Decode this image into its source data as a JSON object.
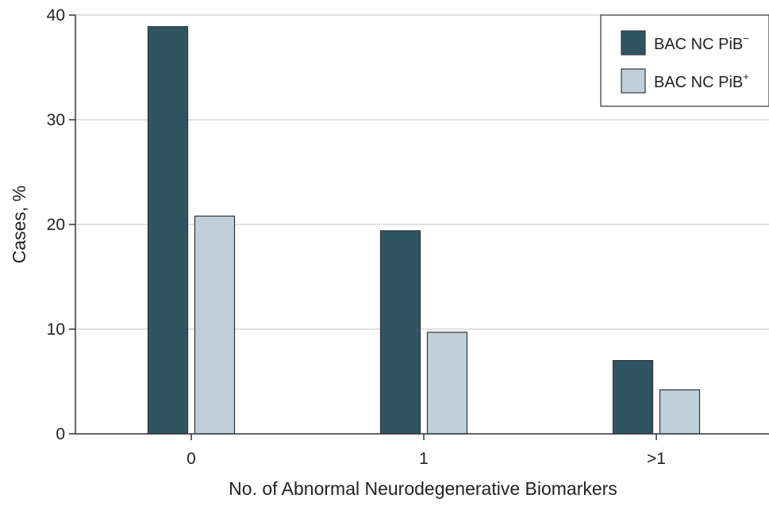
{
  "chart_data": {
    "type": "bar",
    "title": "",
    "xlabel": "No. of Abnormal Neurodegenerative Biomarkers",
    "ylabel": "Cases, %",
    "categories": [
      "0",
      "1",
      ">1"
    ],
    "ylim": [
      0,
      40
    ],
    "yticks": [
      0,
      10,
      20,
      30,
      40
    ],
    "grid": "horizontal",
    "legend_position": "top-right",
    "series": [
      {
        "name": "BAC NC PiB−",
        "label_base": "BAC NC PiB",
        "label_sup": "−",
        "color": "#2f5562",
        "values": [
          38.9,
          19.4,
          7.0
        ]
      },
      {
        "name": "BAC NC PiB+",
        "label_base": "BAC NC PiB",
        "label_sup": "+",
        "color": "#bfd0da",
        "values": [
          20.8,
          9.7,
          4.2
        ]
      }
    ]
  }
}
